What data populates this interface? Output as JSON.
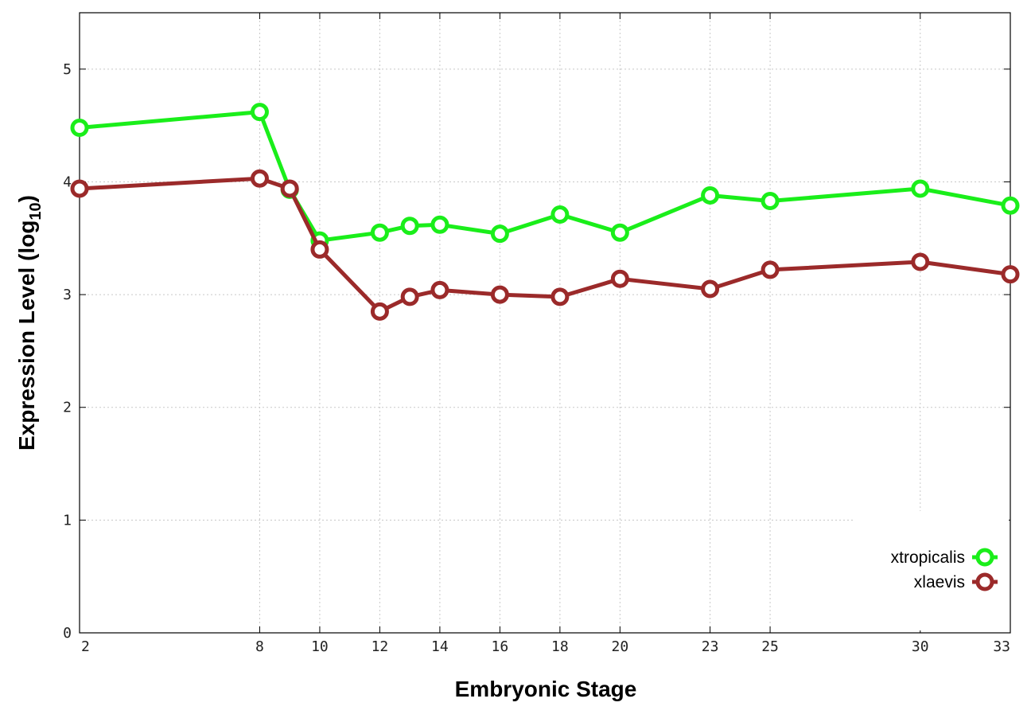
{
  "chart_data": {
    "type": "line",
    "title": "",
    "xlabel": "Embryonic Stage",
    "ylabel": {
      "main": "Expression Level (log",
      "sub": "10",
      "close": ")"
    },
    "x": [
      2,
      8,
      9,
      10,
      12,
      13,
      14,
      16,
      18,
      20,
      23,
      25,
      30,
      33
    ],
    "xticks": [
      2,
      8,
      10,
      12,
      14,
      16,
      18,
      20,
      23,
      25,
      30,
      33
    ],
    "yticks": [
      0,
      1,
      2,
      3,
      4,
      5
    ],
    "xlim": [
      2,
      33
    ],
    "ylim": [
      0,
      5.5
    ],
    "grid": true,
    "legend_position": "bottom-right",
    "series": [
      {
        "name": "xtropicalis",
        "color": "#1aee1a",
        "values": [
          4.48,
          4.62,
          3.93,
          3.48,
          3.55,
          3.61,
          3.62,
          3.54,
          3.71,
          3.55,
          3.88,
          3.83,
          3.94,
          3.79
        ]
      },
      {
        "name": "xlaevis",
        "color": "#9b2a2a",
        "values": [
          3.94,
          4.03,
          3.94,
          3.4,
          2.85,
          2.98,
          3.04,
          3.0,
          2.98,
          3.14,
          3.05,
          3.22,
          3.29,
          3.18
        ]
      }
    ]
  }
}
